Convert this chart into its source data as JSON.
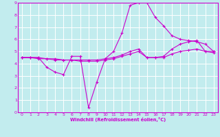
{
  "title": "",
  "xlabel": "Windchill (Refroidissement éolien,°C)",
  "ylabel": "",
  "xlim": [
    -0.5,
    23.5
  ],
  "ylim": [
    0,
    9
  ],
  "xticks": [
    0,
    1,
    2,
    3,
    4,
    5,
    6,
    7,
    8,
    9,
    10,
    11,
    12,
    13,
    14,
    15,
    16,
    17,
    18,
    19,
    20,
    21,
    22,
    23
  ],
  "yticks": [
    0,
    1,
    2,
    3,
    4,
    5,
    6,
    7,
    8,
    9
  ],
  "bg_color": "#c2ecee",
  "grid_color": "#ffffff",
  "line_color": "#cc00cc",
  "line1_x": [
    0,
    1,
    2,
    3,
    4,
    5,
    6,
    7,
    8,
    9,
    10,
    11,
    12,
    13,
    14,
    15,
    16,
    17,
    18,
    19,
    20,
    21,
    22,
    23
  ],
  "line1_y": [
    4.5,
    4.5,
    4.5,
    3.7,
    3.3,
    3.1,
    4.6,
    4.6,
    0.4,
    2.5,
    4.4,
    5.0,
    6.5,
    8.8,
    9.0,
    9.0,
    7.8,
    7.1,
    6.3,
    6.0,
    5.9,
    5.8,
    5.6,
    5.0
  ],
  "line2_x": [
    0,
    1,
    2,
    3,
    4,
    5,
    6,
    7,
    8,
    9,
    10,
    11,
    12,
    13,
    14,
    15,
    16,
    17,
    18,
    19,
    20,
    21,
    22,
    23
  ],
  "line2_y": [
    4.5,
    4.5,
    4.5,
    4.4,
    4.4,
    4.3,
    4.3,
    4.3,
    4.3,
    4.3,
    4.4,
    4.5,
    4.7,
    5.0,
    5.2,
    4.5,
    4.5,
    4.6,
    5.2,
    5.6,
    5.8,
    5.9,
    5.0,
    5.0
  ],
  "line3_x": [
    0,
    1,
    2,
    3,
    4,
    5,
    6,
    7,
    8,
    9,
    10,
    11,
    12,
    13,
    14,
    15,
    16,
    17,
    18,
    19,
    20,
    21,
    22,
    23
  ],
  "line3_y": [
    4.5,
    4.5,
    4.4,
    4.4,
    4.3,
    4.3,
    4.3,
    4.2,
    4.2,
    4.2,
    4.3,
    4.4,
    4.6,
    4.8,
    5.0,
    4.5,
    4.5,
    4.5,
    4.8,
    5.0,
    5.1,
    5.2,
    5.0,
    4.9
  ]
}
